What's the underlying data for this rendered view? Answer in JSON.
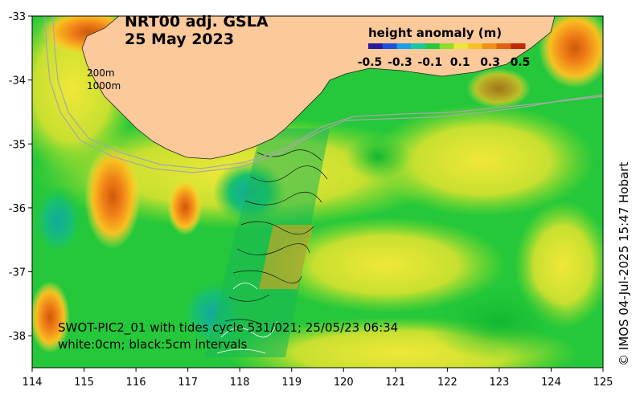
{
  "title": {
    "line1": "NRT00 adj. GSLA",
    "line2": "25 May 2023"
  },
  "colorbar": {
    "title": "height anomaly (m)",
    "ticks": [
      "-0.5",
      "-0.3",
      "-0.1",
      "0.1",
      "0.3",
      "0.5"
    ],
    "colors": [
      "#2a1a9e",
      "#1f4fe0",
      "#18a0e8",
      "#19c8a0",
      "#24c83a",
      "#8edc2c",
      "#e8e83a",
      "#f8c020",
      "#f09018",
      "#e06010",
      "#c02808"
    ]
  },
  "isobaths": {
    "shallow": "200m",
    "deep": "1000m"
  },
  "axes": {
    "x_ticks": [
      "114",
      "115",
      "116",
      "117",
      "118",
      "119",
      "120",
      "121",
      "122",
      "123",
      "124",
      "125"
    ],
    "y_ticks": [
      "-33",
      "-34",
      "-35",
      "-36",
      "-37",
      "-38"
    ],
    "x_range": [
      114,
      125
    ],
    "y_range": [
      -38.5,
      -33
    ]
  },
  "swot": {
    "line1": "SWOT-PIC2_01 with tides cycle 531/021; 25/05/23 06:34",
    "line2": "white:0cm; black:5cm intervals"
  },
  "credit": "© IMOS 04-Jul-2025 15:47 Hobart",
  "colors": {
    "land": "#fbc99a",
    "ocean_base": "#24c83a",
    "isobath_line": "#a8a8a8"
  }
}
